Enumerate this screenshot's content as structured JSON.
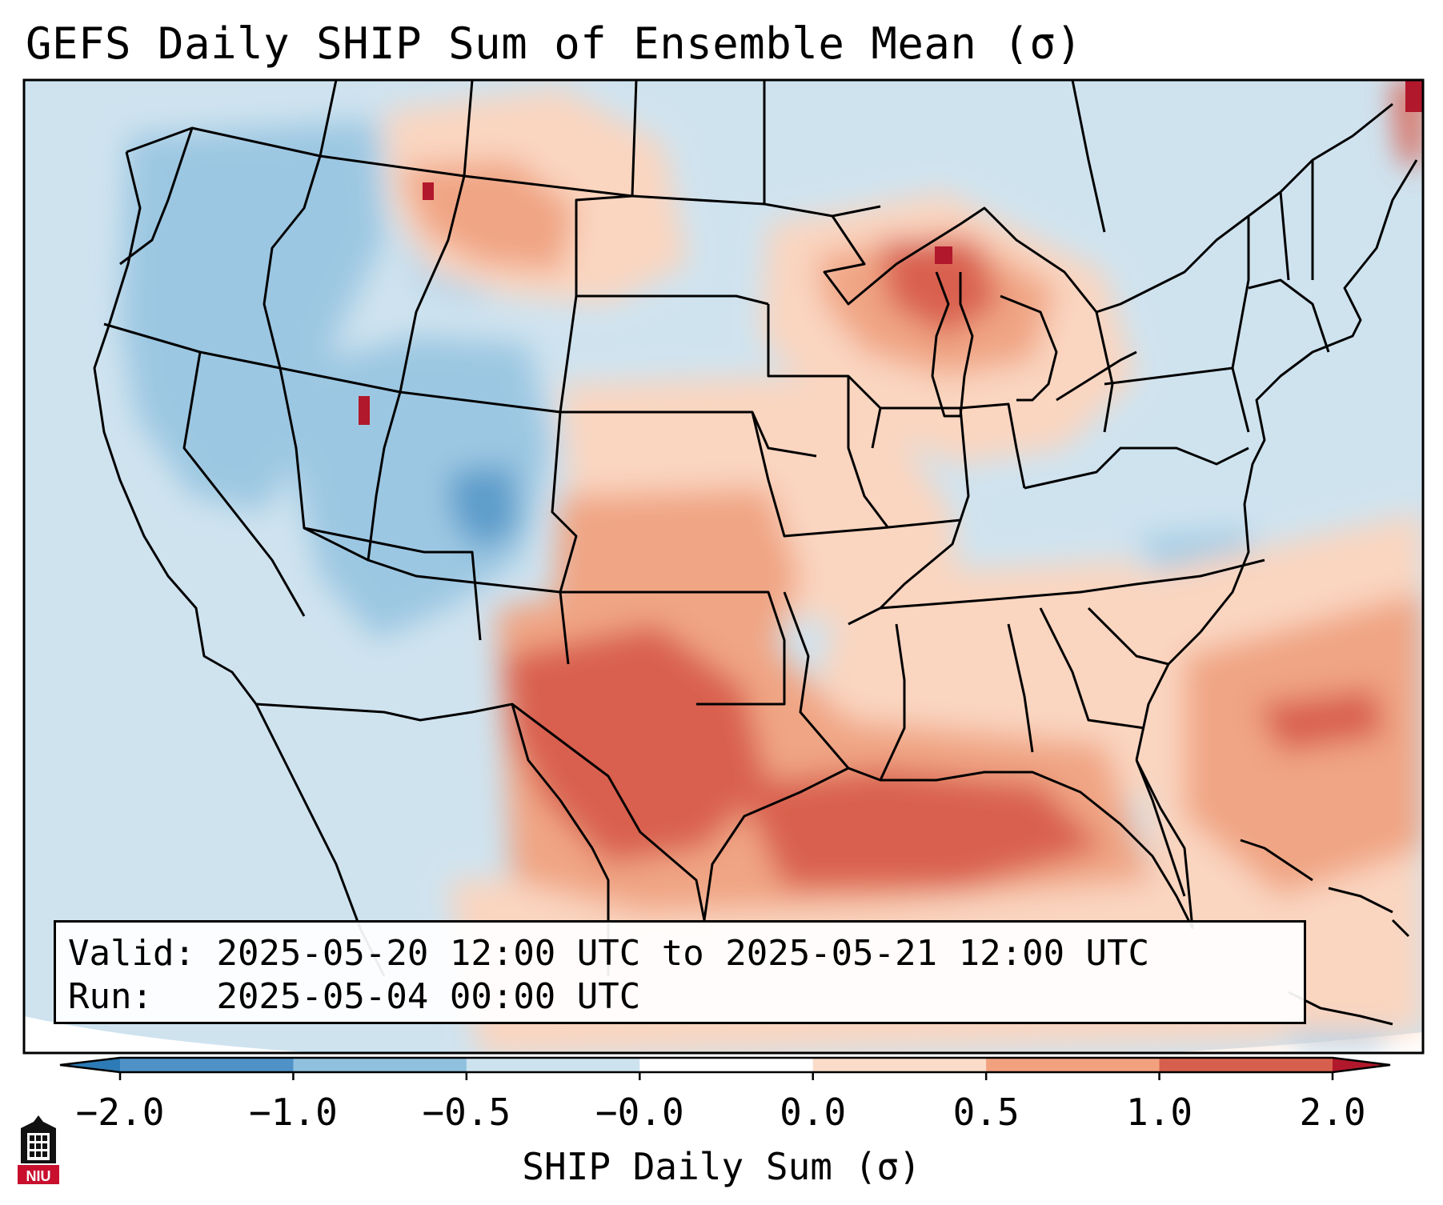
{
  "title": "GEFS Daily SHIP Sum of Ensemble Mean (σ)",
  "info": {
    "valid_label": "Valid:",
    "valid_value": "2025-05-20 12:00 UTC to 2025-05-21 12:00 UTC",
    "run_label": "Run:",
    "run_value": "2025-05-04 00:00 UTC"
  },
  "colorbar": {
    "label": "SHIP Daily Sum (σ)",
    "ticks": [
      "−2.0",
      "−1.0",
      "−0.5",
      "−0.0",
      "0.0",
      "0.5",
      "1.0",
      "2.0"
    ],
    "colors": [
      "#2c7bb6",
      "#4f92c8",
      "#8fc1de",
      "#cde2ef",
      "#fbdcc9",
      "#f2a17f",
      "#d6604d",
      "#b2182b"
    ],
    "extend": "both"
  },
  "logo": {
    "text": "NIU",
    "icon": "niu-tower-logo-icon"
  },
  "map": {
    "region": "CONUS",
    "background_color": "#cfe3ef",
    "outline_color": "#000000"
  }
}
